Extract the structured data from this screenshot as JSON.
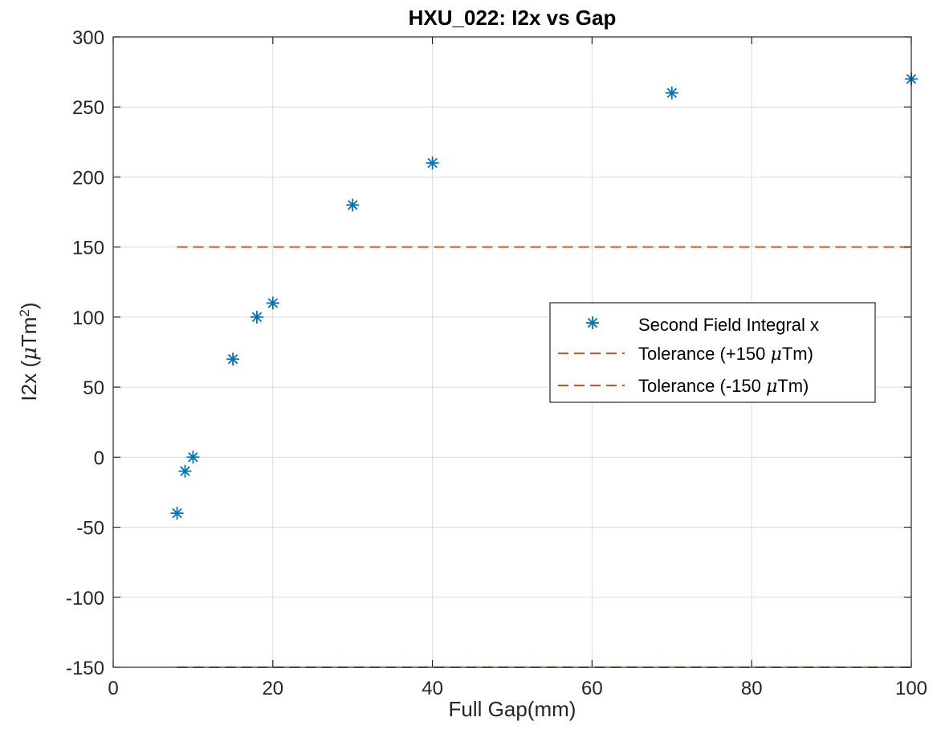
{
  "chart_data": {
    "type": "scatter",
    "title": "HXU_022: I2x vs Gap",
    "xlabel": "Full Gap(mm)",
    "ylabel_main": "I2x (",
    "ylabel_mu": "μ",
    "ylabel_unit": "Tm",
    "ylabel_sup": "2",
    "ylabel_close": ")",
    "xlim": [
      0,
      100
    ],
    "ylim": [
      -150,
      300
    ],
    "xticks": [
      0,
      20,
      40,
      60,
      80,
      100
    ],
    "yticks": [
      -150,
      -100,
      -50,
      0,
      50,
      100,
      150,
      200,
      250,
      300
    ],
    "grid": true,
    "legend_position": "center-right",
    "series": [
      {
        "name": "Second Field Integral x",
        "marker": "asterisk",
        "color": "#0072BD",
        "x": [
          8,
          9,
          10,
          15,
          18,
          20,
          30,
          40,
          70,
          100
        ],
        "y": [
          -40,
          -10,
          0,
          70,
          100,
          110,
          180,
          210,
          260,
          270
        ]
      }
    ],
    "reference_lines": [
      {
        "name_pre": "Tolerance (+150 ",
        "name_mu": "μ",
        "name_post": "Tm)",
        "y": 150,
        "x_from": 8,
        "x_to": 100,
        "style": "dashed",
        "color": "#D95319"
      },
      {
        "name_pre": "Tolerance (-150 ",
        "name_mu": "μ",
        "name_post": "Tm)",
        "y": -150,
        "x_from": 8,
        "x_to": 100,
        "style": "dashed",
        "color": "#D95319"
      }
    ]
  }
}
